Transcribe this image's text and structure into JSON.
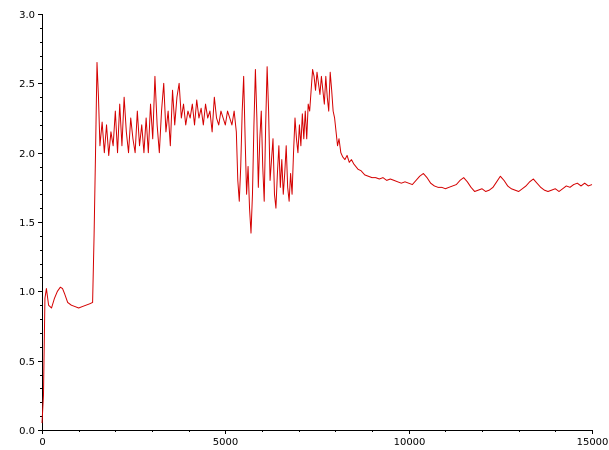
{
  "chart_data": {
    "type": "line",
    "title": "",
    "xlabel": "",
    "ylabel": "",
    "xlim": [
      0,
      15000
    ],
    "ylim": [
      0,
      3.0
    ],
    "x_ticks": [
      0,
      5000,
      10000,
      15000
    ],
    "x_tick_labels": [
      "0",
      "5000",
      "10000",
      "15000"
    ],
    "y_ticks": [
      0.0,
      0.5,
      1.0,
      1.5,
      2.0,
      2.5,
      3.0
    ],
    "y_tick_labels": [
      "0.0",
      "0.5",
      "1.0",
      "1.5",
      "2.0",
      "2.5",
      "3.0"
    ],
    "grid": false,
    "legend": "none",
    "series": [
      {
        "color": "#d40000",
        "points": [
          [
            0,
            0.05
          ],
          [
            40,
            0.25
          ],
          [
            80,
            0.95
          ],
          [
            120,
            1.02
          ],
          [
            180,
            0.9
          ],
          [
            260,
            0.88
          ],
          [
            340,
            0.95
          ],
          [
            420,
            1.0
          ],
          [
            500,
            1.03
          ],
          [
            560,
            1.02
          ],
          [
            620,
            0.98
          ],
          [
            700,
            0.92
          ],
          [
            800,
            0.9
          ],
          [
            900,
            0.89
          ],
          [
            1000,
            0.88
          ],
          [
            1100,
            0.89
          ],
          [
            1200,
            0.9
          ],
          [
            1300,
            0.91
          ],
          [
            1380,
            0.92
          ],
          [
            1420,
            1.4
          ],
          [
            1460,
            2.0
          ],
          [
            1500,
            2.65
          ],
          [
            1540,
            2.4
          ],
          [
            1580,
            2.05
          ],
          [
            1640,
            2.22
          ],
          [
            1700,
            2.0
          ],
          [
            1760,
            2.2
          ],
          [
            1820,
            1.98
          ],
          [
            1880,
            2.15
          ],
          [
            1940,
            2.05
          ],
          [
            2000,
            2.3
          ],
          [
            2060,
            2.0
          ],
          [
            2120,
            2.35
          ],
          [
            2180,
            2.05
          ],
          [
            2240,
            2.4
          ],
          [
            2300,
            2.15
          ],
          [
            2360,
            2.0
          ],
          [
            2420,
            2.25
          ],
          [
            2480,
            2.1
          ],
          [
            2540,
            2.0
          ],
          [
            2600,
            2.3
          ],
          [
            2660,
            2.05
          ],
          [
            2720,
            2.2
          ],
          [
            2780,
            2.0
          ],
          [
            2840,
            2.25
          ],
          [
            2900,
            2.0
          ],
          [
            2960,
            2.35
          ],
          [
            3020,
            2.1
          ],
          [
            3080,
            2.55
          ],
          [
            3140,
            2.2
          ],
          [
            3200,
            2.0
          ],
          [
            3260,
            2.3
          ],
          [
            3320,
            2.5
          ],
          [
            3380,
            2.15
          ],
          [
            3440,
            2.3
          ],
          [
            3500,
            2.05
          ],
          [
            3560,
            2.45
          ],
          [
            3620,
            2.2
          ],
          [
            3680,
            2.4
          ],
          [
            3740,
            2.5
          ],
          [
            3800,
            2.25
          ],
          [
            3860,
            2.35
          ],
          [
            3920,
            2.2
          ],
          [
            3980,
            2.3
          ],
          [
            4040,
            2.25
          ],
          [
            4100,
            2.35
          ],
          [
            4160,
            2.2
          ],
          [
            4220,
            2.38
          ],
          [
            4280,
            2.25
          ],
          [
            4340,
            2.32
          ],
          [
            4400,
            2.2
          ],
          [
            4460,
            2.35
          ],
          [
            4520,
            2.25
          ],
          [
            4580,
            2.3
          ],
          [
            4640,
            2.15
          ],
          [
            4700,
            2.4
          ],
          [
            4760,
            2.25
          ],
          [
            4820,
            2.2
          ],
          [
            4880,
            2.3
          ],
          [
            4940,
            2.25
          ],
          [
            5000,
            2.2
          ],
          [
            5060,
            2.3
          ],
          [
            5120,
            2.25
          ],
          [
            5180,
            2.2
          ],
          [
            5240,
            2.3
          ],
          [
            5300,
            2.15
          ],
          [
            5340,
            1.8
          ],
          [
            5380,
            1.65
          ],
          [
            5420,
            1.9
          ],
          [
            5460,
            2.3
          ],
          [
            5500,
            2.55
          ],
          [
            5540,
            2.1
          ],
          [
            5580,
            1.7
          ],
          [
            5620,
            1.9
          ],
          [
            5660,
            1.6
          ],
          [
            5700,
            1.42
          ],
          [
            5740,
            1.7
          ],
          [
            5780,
            2.2
          ],
          [
            5820,
            2.6
          ],
          [
            5860,
            2.25
          ],
          [
            5900,
            1.75
          ],
          [
            5940,
            2.1
          ],
          [
            5980,
            2.3
          ],
          [
            6020,
            1.9
          ],
          [
            6060,
            1.65
          ],
          [
            6100,
            2.2
          ],
          [
            6140,
            2.62
          ],
          [
            6180,
            2.3
          ],
          [
            6220,
            1.8
          ],
          [
            6260,
            1.95
          ],
          [
            6300,
            2.1
          ],
          [
            6340,
            1.7
          ],
          [
            6380,
            1.6
          ],
          [
            6420,
            1.85
          ],
          [
            6460,
            2.05
          ],
          [
            6500,
            1.75
          ],
          [
            6540,
            1.95
          ],
          [
            6580,
            1.7
          ],
          [
            6620,
            1.85
          ],
          [
            6660,
            2.05
          ],
          [
            6700,
            1.75
          ],
          [
            6740,
            1.65
          ],
          [
            6780,
            1.85
          ],
          [
            6820,
            1.7
          ],
          [
            6860,
            2.0
          ],
          [
            6900,
            2.25
          ],
          [
            6940,
            2.1
          ],
          [
            6980,
            2.0
          ],
          [
            7020,
            2.2
          ],
          [
            7060,
            2.05
          ],
          [
            7100,
            2.28
          ],
          [
            7140,
            2.1
          ],
          [
            7180,
            2.3
          ],
          [
            7220,
            2.1
          ],
          [
            7260,
            2.35
          ],
          [
            7300,
            2.3
          ],
          [
            7340,
            2.45
          ],
          [
            7380,
            2.6
          ],
          [
            7420,
            2.55
          ],
          [
            7460,
            2.45
          ],
          [
            7500,
            2.58
          ],
          [
            7540,
            2.5
          ],
          [
            7580,
            2.42
          ],
          [
            7620,
            2.55
          ],
          [
            7660,
            2.45
          ],
          [
            7700,
            2.35
          ],
          [
            7740,
            2.55
          ],
          [
            7780,
            2.4
          ],
          [
            7820,
            2.3
          ],
          [
            7860,
            2.58
          ],
          [
            7900,
            2.45
          ],
          [
            7940,
            2.3
          ],
          [
            7980,
            2.25
          ],
          [
            8020,
            2.15
          ],
          [
            8060,
            2.05
          ],
          [
            8100,
            2.1
          ],
          [
            8150,
            2.0
          ],
          [
            8200,
            1.97
          ],
          [
            8260,
            1.95
          ],
          [
            8320,
            1.98
          ],
          [
            8380,
            1.93
          ],
          [
            8440,
            1.95
          ],
          [
            8500,
            1.92
          ],
          [
            8560,
            1.9
          ],
          [
            8620,
            1.88
          ],
          [
            8700,
            1.87
          ],
          [
            8800,
            1.84
          ],
          [
            8900,
            1.83
          ],
          [
            9000,
            1.82
          ],
          [
            9100,
            1.82
          ],
          [
            9200,
            1.81
          ],
          [
            9300,
            1.82
          ],
          [
            9400,
            1.8
          ],
          [
            9500,
            1.81
          ],
          [
            9600,
            1.8
          ],
          [
            9700,
            1.79
          ],
          [
            9800,
            1.78
          ],
          [
            9900,
            1.79
          ],
          [
            10000,
            1.78
          ],
          [
            10100,
            1.77
          ],
          [
            10200,
            1.8
          ],
          [
            10300,
            1.83
          ],
          [
            10400,
            1.85
          ],
          [
            10500,
            1.82
          ],
          [
            10600,
            1.78
          ],
          [
            10700,
            1.76
          ],
          [
            10800,
            1.75
          ],
          [
            10900,
            1.75
          ],
          [
            11000,
            1.74
          ],
          [
            11100,
            1.75
          ],
          [
            11200,
            1.76
          ],
          [
            11300,
            1.77
          ],
          [
            11400,
            1.8
          ],
          [
            11500,
            1.82
          ],
          [
            11600,
            1.79
          ],
          [
            11700,
            1.75
          ],
          [
            11800,
            1.72
          ],
          [
            11900,
            1.73
          ],
          [
            12000,
            1.74
          ],
          [
            12100,
            1.72
          ],
          [
            12200,
            1.73
          ],
          [
            12300,
            1.75
          ],
          [
            12400,
            1.79
          ],
          [
            12500,
            1.83
          ],
          [
            12600,
            1.8
          ],
          [
            12700,
            1.76
          ],
          [
            12800,
            1.74
          ],
          [
            12900,
            1.73
          ],
          [
            13000,
            1.72
          ],
          [
            13100,
            1.74
          ],
          [
            13200,
            1.76
          ],
          [
            13300,
            1.79
          ],
          [
            13400,
            1.81
          ],
          [
            13500,
            1.78
          ],
          [
            13600,
            1.75
          ],
          [
            13700,
            1.73
          ],
          [
            13800,
            1.72
          ],
          [
            13900,
            1.73
          ],
          [
            14000,
            1.74
          ],
          [
            14100,
            1.72
          ],
          [
            14200,
            1.74
          ],
          [
            14300,
            1.76
          ],
          [
            14400,
            1.75
          ],
          [
            14500,
            1.77
          ],
          [
            14600,
            1.78
          ],
          [
            14700,
            1.76
          ],
          [
            14800,
            1.78
          ],
          [
            14900,
            1.76
          ],
          [
            15000,
            1.77
          ]
        ]
      }
    ]
  }
}
